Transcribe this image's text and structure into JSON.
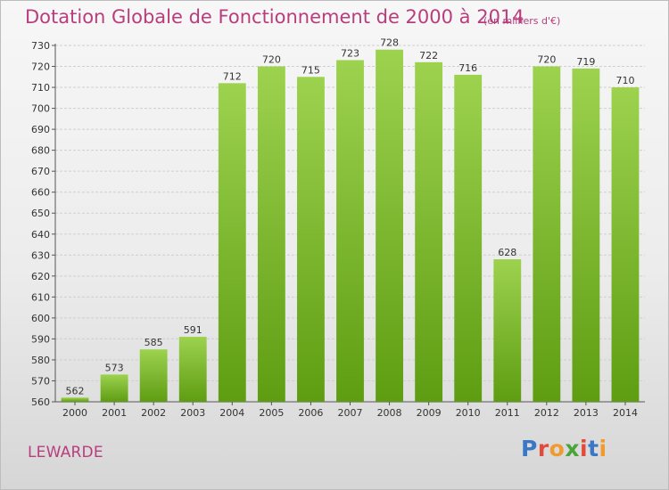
{
  "header": {
    "title": "Dotation Globale de Fonctionnement de 2000 à 2014",
    "subtitle": "(en milliers d'€)"
  },
  "footer": {
    "commune": "LEWARDE",
    "logo_letters": [
      "P",
      "r",
      "o",
      "x",
      "i",
      "t",
      "i"
    ]
  },
  "colors": {
    "title": "#b83d7d",
    "bar_top": "#9dd24f",
    "bar_bottom": "#5e9d12",
    "grid": "#cfcfcf"
  },
  "chart_data": {
    "type": "bar",
    "title": "Dotation Globale de Fonctionnement de 2000 à 2014",
    "subtitle": "(en milliers d'€)",
    "xlabel": "",
    "ylabel": "",
    "categories": [
      "2000",
      "2001",
      "2002",
      "2003",
      "2004",
      "2005",
      "2006",
      "2007",
      "2008",
      "2009",
      "2010",
      "2011",
      "2012",
      "2013",
      "2014"
    ],
    "values": [
      562,
      573,
      585,
      591,
      712,
      720,
      715,
      723,
      728,
      722,
      716,
      628,
      720,
      719,
      710
    ],
    "ylim": [
      560,
      730
    ],
    "yticks": [
      560,
      570,
      580,
      590,
      600,
      610,
      620,
      630,
      640,
      650,
      660,
      670,
      680,
      690,
      700,
      710,
      720,
      730
    ],
    "grid": true,
    "data_labels": true
  }
}
